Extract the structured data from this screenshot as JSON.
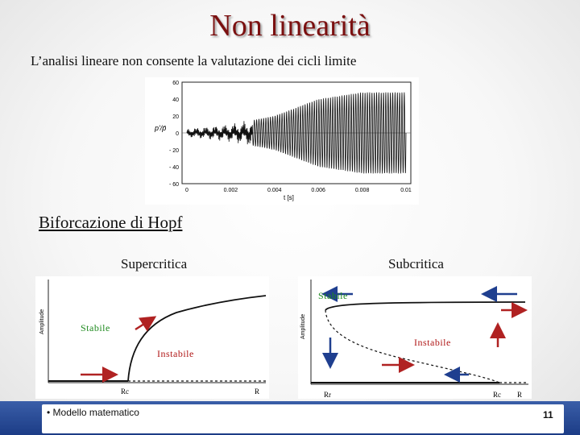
{
  "slide": {
    "title": "Non linearità",
    "subtitle": "L’analisi lineare non consente la valutazione dei cicli limite",
    "section_heading": "Biforcazione di Hopf",
    "bullet": "• Modello matematico",
    "page_number": "11",
    "title_color": "#7b1010",
    "footer_color": "#2a4a97"
  },
  "chart_data": {
    "type": "line",
    "y_label": "p'/p̄",
    "x_label": "t [s]",
    "x_ticks": [
      "0",
      "0.002",
      "0.004",
      "0.006",
      "0.008",
      "0.01"
    ],
    "y_ticks": [
      "60",
      "40",
      "20",
      "0",
      "- 20",
      "- 40",
      "- 60"
    ],
    "xlim": [
      0,
      0.01
    ],
    "ylim": [
      -60,
      60
    ],
    "series": [
      {
        "description_values": {
          "t": [
            0,
            0.002,
            0.004,
            0.006,
            0.008,
            0.01
          ],
          "envelope_amplitude": [
            5,
            10,
            20,
            40,
            48,
            48
          ]
        }
      }
    ]
  },
  "bifurcation": {
    "supercritical": {
      "heading": "Supercritica",
      "y_axis_label": "Amplitude",
      "stable_label": "Stabile",
      "unstable_label": "Instabile",
      "x_labels": [
        "Rc",
        "R"
      ]
    },
    "subcritical": {
      "heading": "Subcritica",
      "y_axis_label": "Amplitude",
      "stable_label": "Stabile",
      "unstable_label": "Instabile",
      "x_labels": [
        "Rr",
        "Rc",
        "R"
      ]
    }
  }
}
